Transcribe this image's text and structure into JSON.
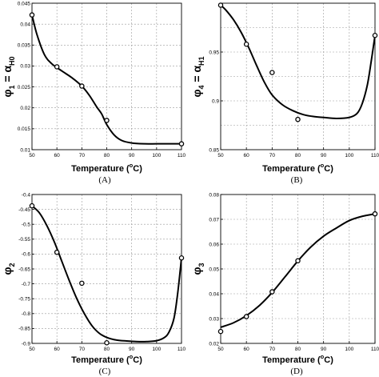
{
  "chart_data": [
    {
      "id": "A",
      "type": "scatter",
      "caption": "(A)",
      "xlabel": "Temperature (°C)",
      "xlabel_parts": {
        "pre": "Temperature (",
        "sup": "o",
        "post": "C)"
      },
      "ylabel_parts": [
        {
          "t": "φ",
          "sub": false
        },
        {
          "t": "1",
          "sub": true
        },
        {
          "t": " = α",
          "sub": false
        },
        {
          "t": "H0",
          "sub": true
        }
      ],
      "xlim": [
        50,
        110
      ],
      "ylim": [
        0.01,
        0.045
      ],
      "xticks": [
        50,
        60,
        70,
        80,
        90,
        100,
        110
      ],
      "yticks": [
        0.01,
        0.015,
        0.02,
        0.025,
        0.03,
        0.035,
        0.04,
        0.045
      ],
      "ytick_labels": [
        "0.01",
        "0.015",
        "0.02",
        "0.025",
        "0.03",
        "0.035",
        "0.04",
        "0.045"
      ],
      "grid": true,
      "points": {
        "x": [
          50,
          60,
          70,
          80,
          110
        ],
        "y": [
          0.0422,
          0.0298,
          0.0252,
          0.017,
          0.0114
        ]
      },
      "curve": {
        "x": [
          50,
          52,
          55,
          58,
          62,
          66,
          70,
          73,
          76,
          78,
          80,
          83,
          86,
          90,
          95,
          100,
          105,
          110
        ],
        "y": [
          0.0422,
          0.0375,
          0.0327,
          0.0305,
          0.0288,
          0.0272,
          0.0252,
          0.023,
          0.0202,
          0.0185,
          0.016,
          0.0135,
          0.0122,
          0.0116,
          0.0114,
          0.0114,
          0.0114,
          0.0114
        ]
      }
    },
    {
      "id": "B",
      "type": "scatter",
      "caption": "(B)",
      "xlabel": "Temperature (°C)",
      "xlabel_parts": {
        "pre": "Temperature (",
        "sup": "o",
        "post": "C)"
      },
      "ylabel_parts": [
        {
          "t": "φ",
          "sub": false
        },
        {
          "t": "4",
          "sub": true
        },
        {
          "t": " = α",
          "sub": false
        },
        {
          "t": "H1",
          "sub": true
        }
      ],
      "xlim": [
        50,
        110
      ],
      "ylim": [
        0.85,
        1.0
      ],
      "xticks": [
        50,
        60,
        70,
        80,
        90,
        100,
        110
      ],
      "yticks": [
        0.85,
        0.9,
        0.95
      ],
      "ytick_labels": [
        "0.85",
        "0.9",
        "0.95"
      ],
      "ygrid": [
        0.85,
        0.875,
        0.9,
        0.925,
        0.95,
        0.975,
        1.0
      ],
      "grid": true,
      "points": {
        "x": [
          50,
          60,
          70,
          80,
          110
        ],
        "y": [
          0.998,
          0.958,
          0.929,
          0.881,
          0.967
        ]
      },
      "curve": {
        "x": [
          50,
          52,
          55,
          58,
          61,
          64,
          67,
          70,
          74,
          78,
          82,
          86,
          90,
          95,
          100,
          103,
          105,
          107,
          108.5,
          110
        ],
        "y": [
          0.998,
          0.993,
          0.983,
          0.97,
          0.954,
          0.936,
          0.919,
          0.906,
          0.896,
          0.89,
          0.886,
          0.884,
          0.883,
          0.882,
          0.883,
          0.887,
          0.897,
          0.916,
          0.94,
          0.967
        ]
      }
    },
    {
      "id": "C",
      "type": "scatter",
      "caption": "(C)",
      "xlabel": "Temperature (°C)",
      "xlabel_parts": {
        "pre": "Temperature (",
        "sup": "o",
        "post": "C)"
      },
      "ylabel_parts": [
        {
          "t": "φ",
          "sub": false
        },
        {
          "t": "2",
          "sub": true
        }
      ],
      "xlim": [
        50,
        110
      ],
      "ylim": [
        -0.9,
        -0.4
      ],
      "xticks": [
        50,
        60,
        70,
        80,
        90,
        100,
        110
      ],
      "yticks": [
        -0.9,
        -0.85,
        -0.8,
        -0.75,
        -0.7,
        -0.65,
        -0.6,
        -0.55,
        -0.5,
        -0.45,
        -0.4
      ],
      "ytick_labels": [
        "-0.9",
        "-0.85",
        "-0.8",
        "-0.75",
        "-0.7",
        "-0.65",
        "-0.6",
        "-0.55",
        "-0.5",
        "-0.45",
        "-0.4"
      ],
      "grid": true,
      "points": {
        "x": [
          50,
          60,
          70,
          80,
          110
        ],
        "y": [
          -0.438,
          -0.594,
          -0.698,
          -0.898,
          -0.613
        ]
      },
      "curve": {
        "x": [
          50,
          53,
          56,
          59,
          62,
          65,
          68,
          71,
          74,
          77,
          80,
          84,
          88,
          92,
          96,
          100,
          103,
          105,
          107,
          108.5,
          110
        ],
        "y": [
          -0.438,
          -0.462,
          -0.505,
          -0.56,
          -0.625,
          -0.69,
          -0.75,
          -0.8,
          -0.84,
          -0.866,
          -0.88,
          -0.889,
          -0.892,
          -0.894,
          -0.894,
          -0.891,
          -0.881,
          -0.862,
          -0.815,
          -0.73,
          -0.613
        ]
      }
    },
    {
      "id": "D",
      "type": "scatter",
      "caption": "(D)",
      "xlabel": "Temperature (°C)",
      "xlabel_parts": {
        "pre": "Temperature (",
        "sup": "o",
        "post": "C)"
      },
      "ylabel_parts": [
        {
          "t": "φ",
          "sub": false
        },
        {
          "t": "3",
          "sub": true
        }
      ],
      "xlim": [
        50,
        110
      ],
      "ylim": [
        0.02,
        0.08
      ],
      "xticks": [
        50,
        60,
        70,
        80,
        90,
        100,
        110
      ],
      "yticks": [
        0.02,
        0.03,
        0.04,
        0.05,
        0.06,
        0.07,
        0.08
      ],
      "ytick_labels": [
        "0.02",
        "0.03",
        "0.04",
        "0.05",
        "0.06",
        "0.07",
        "0.08"
      ],
      "grid": true,
      "points": {
        "x": [
          50,
          60,
          70,
          80,
          110
        ],
        "y": [
          0.0248,
          0.0308,
          0.0408,
          0.0533,
          0.0722
        ]
      },
      "curve": {
        "x": [
          50,
          55,
          60,
          65,
          70,
          75,
          80,
          85,
          90,
          95,
          100,
          105,
          110
        ],
        "y": [
          0.0265,
          0.0283,
          0.0312,
          0.0352,
          0.0405,
          0.0468,
          0.0532,
          0.0588,
          0.0632,
          0.0665,
          0.0695,
          0.0712,
          0.0722
        ]
      }
    }
  ]
}
